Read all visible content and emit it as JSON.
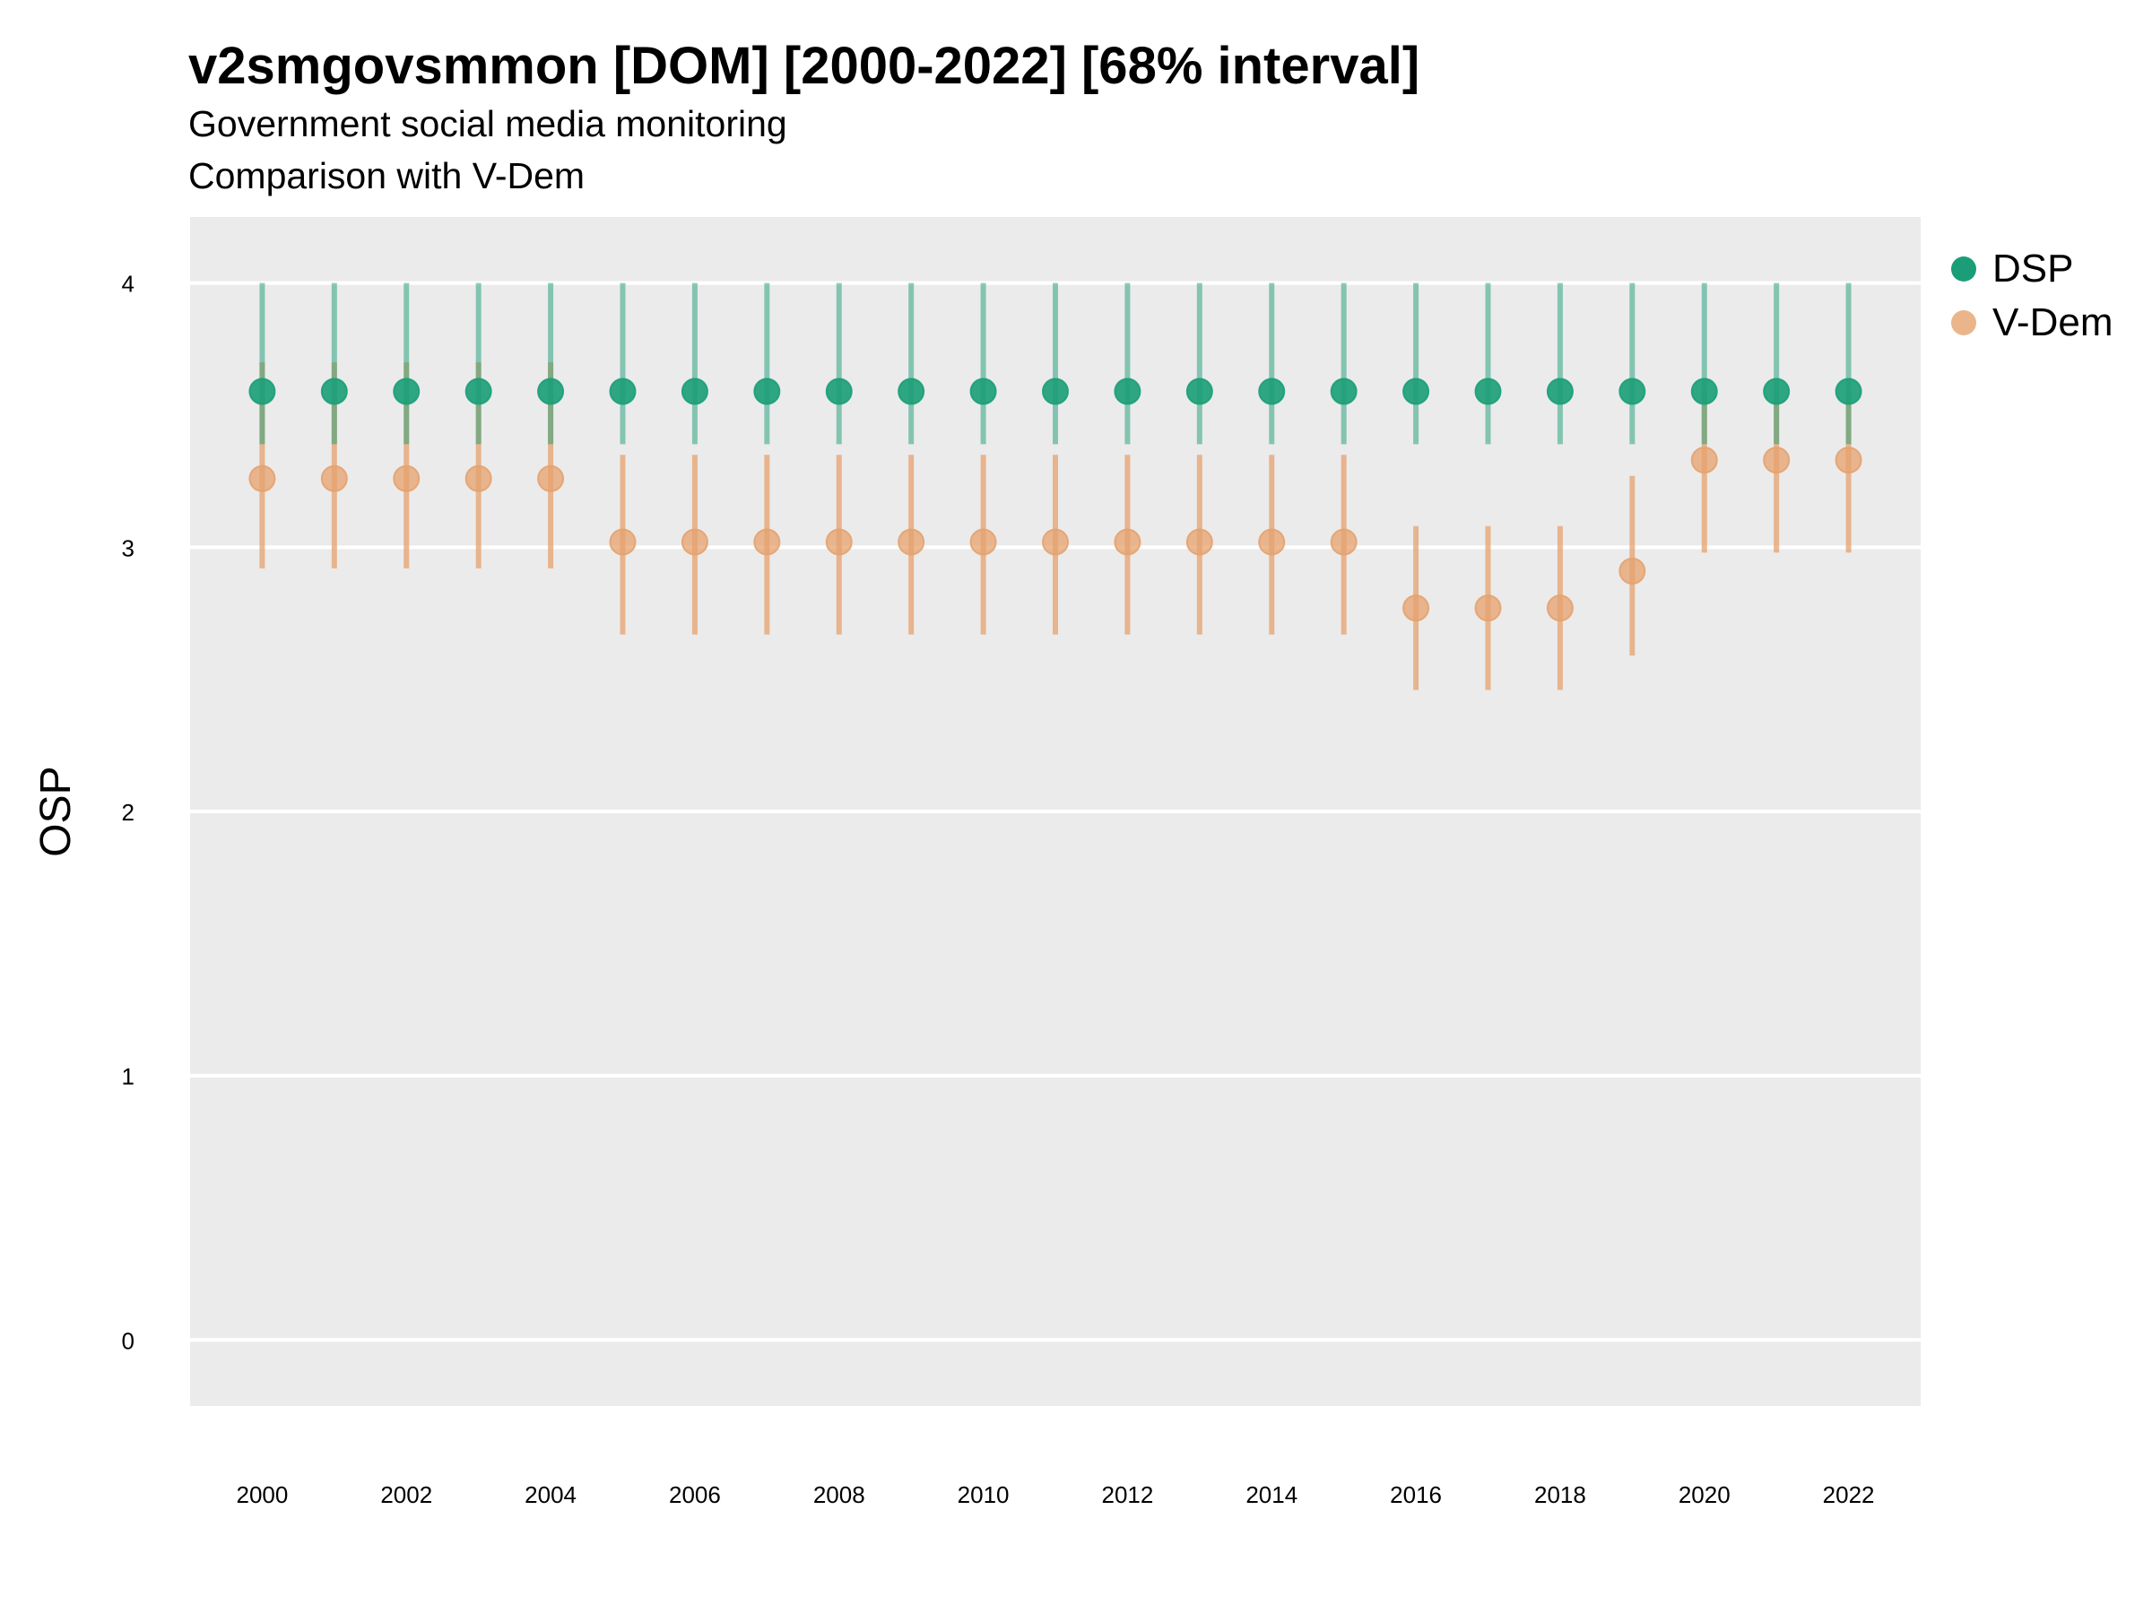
{
  "chart_data": {
    "type": "scatter",
    "title": "v2smgovsmmon [DOM] [2000-2022] [68% interval]",
    "subtitle": [
      "Government social media monitoring",
      "Comparison with V-Dem"
    ],
    "xlabel": "",
    "ylabel": "OSP",
    "xlim": [
      1999.0,
      2023.0
    ],
    "ylim": [
      -0.25,
      4.25
    ],
    "xticks": [
      2000,
      2002,
      2004,
      2006,
      2008,
      2010,
      2012,
      2014,
      2016,
      2018,
      2020,
      2022
    ],
    "yticks": [
      0,
      1,
      2,
      3,
      4
    ],
    "grid": true,
    "legend_position": "right",
    "x": [
      2000,
      2001,
      2002,
      2003,
      2004,
      2005,
      2006,
      2007,
      2008,
      2009,
      2010,
      2011,
      2012,
      2013,
      2014,
      2015,
      2016,
      2017,
      2018,
      2019,
      2020,
      2021,
      2022
    ],
    "series": [
      {
        "name": "DSP",
        "color": "#1b9e77",
        "values": [
          3.59,
          3.59,
          3.59,
          3.59,
          3.59,
          3.59,
          3.59,
          3.59,
          3.59,
          3.59,
          3.59,
          3.59,
          3.59,
          3.59,
          3.59,
          3.59,
          3.59,
          3.59,
          3.59,
          3.59,
          3.59,
          3.59,
          3.59
        ],
        "lower": [
          3.39,
          3.39,
          3.39,
          3.39,
          3.39,
          3.39,
          3.39,
          3.39,
          3.39,
          3.39,
          3.39,
          3.39,
          3.39,
          3.39,
          3.39,
          3.39,
          3.39,
          3.39,
          3.39,
          3.39,
          3.39,
          3.39,
          3.39
        ],
        "upper": [
          4.0,
          4.0,
          4.0,
          4.0,
          4.0,
          4.0,
          4.0,
          4.0,
          4.0,
          4.0,
          4.0,
          4.0,
          4.0,
          4.0,
          4.0,
          4.0,
          4.0,
          4.0,
          4.0,
          4.0,
          4.0,
          4.0,
          4.0
        ]
      },
      {
        "name": "V-Dem",
        "color": "#e6a26e",
        "values": [
          3.26,
          3.26,
          3.26,
          3.26,
          3.26,
          3.02,
          3.02,
          3.02,
          3.02,
          3.02,
          3.02,
          3.02,
          3.02,
          3.02,
          3.02,
          3.02,
          2.77,
          2.77,
          2.77,
          2.91,
          3.33,
          3.33,
          3.33
        ],
        "lower": [
          2.92,
          2.92,
          2.92,
          2.92,
          2.92,
          2.67,
          2.67,
          2.67,
          2.67,
          2.67,
          2.67,
          2.67,
          2.67,
          2.67,
          2.67,
          2.67,
          2.46,
          2.46,
          2.46,
          2.59,
          2.98,
          2.98,
          2.98
        ],
        "upper": [
          3.7,
          3.7,
          3.7,
          3.7,
          3.7,
          3.35,
          3.35,
          3.35,
          3.35,
          3.35,
          3.35,
          3.35,
          3.35,
          3.35,
          3.35,
          3.35,
          3.08,
          3.08,
          3.08,
          3.27,
          3.59,
          3.59,
          3.59
        ]
      }
    ]
  }
}
